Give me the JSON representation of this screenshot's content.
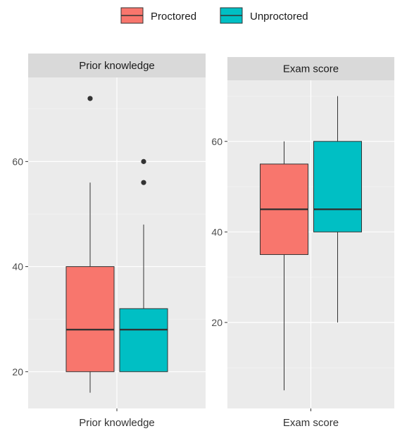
{
  "chart_data": {
    "type": "boxplot",
    "legend": {
      "position": "top",
      "entries": [
        {
          "name": "Proctored",
          "color": "#F8766D"
        },
        {
          "name": "Unproctored",
          "color": "#00BFC4"
        }
      ]
    },
    "grid": true,
    "panels": [
      {
        "strip": "Prior knowledge",
        "x_tick": "Prior knowledge",
        "ylim": [
          13,
          76
        ],
        "y_ticks": [
          20,
          40,
          60
        ],
        "boxes": [
          {
            "group": "Proctored",
            "min": 16,
            "q1": 20,
            "median": 28,
            "q3": 40,
            "max": 56,
            "outliers": [
              72
            ]
          },
          {
            "group": "Unproctored",
            "min": 20,
            "q1": 20,
            "median": 28,
            "q3": 32,
            "max": 48,
            "outliers": [
              56,
              60
            ]
          }
        ]
      },
      {
        "strip": "Exam score",
        "x_tick": "Exam score",
        "ylim": [
          1,
          73.5
        ],
        "y_ticks": [
          20,
          40,
          60
        ],
        "boxes": [
          {
            "group": "Proctored",
            "min": 5,
            "q1": 35,
            "median": 45,
            "q3": 55,
            "max": 60,
            "outliers": []
          },
          {
            "group": "Unproctored",
            "min": 20,
            "q1": 40,
            "median": 45,
            "q3": 60,
            "max": 70,
            "outliers": []
          }
        ]
      }
    ]
  }
}
